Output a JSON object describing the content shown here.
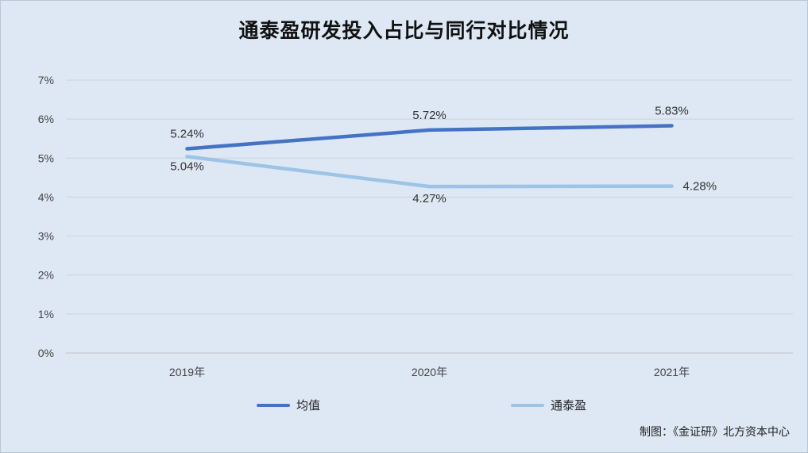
{
  "chart_data": {
    "type": "line",
    "title": "通泰盈研发投入占比与同行对比情况",
    "categories": [
      "2019年",
      "2020年",
      "2021年"
    ],
    "y_ticks": [
      "0%",
      "1%",
      "2%",
      "3%",
      "4%",
      "5%",
      "6%",
      "7%"
    ],
    "ylim": [
      0,
      7
    ],
    "grid": true,
    "legend_position": "bottom",
    "series": [
      {
        "name": "均值",
        "color": "#4472c4",
        "values": [
          5.24,
          5.72,
          5.83
        ],
        "labels": [
          "5.24%",
          "5.72%",
          "5.83%"
        ]
      },
      {
        "name": "通泰盈",
        "color": "#9dc3e6",
        "values": [
          5.04,
          4.27,
          4.28
        ],
        "labels": [
          "5.04%",
          "4.27%",
          "4.28%"
        ]
      }
    ],
    "source": "制图：《金证研》北方资本中心"
  }
}
